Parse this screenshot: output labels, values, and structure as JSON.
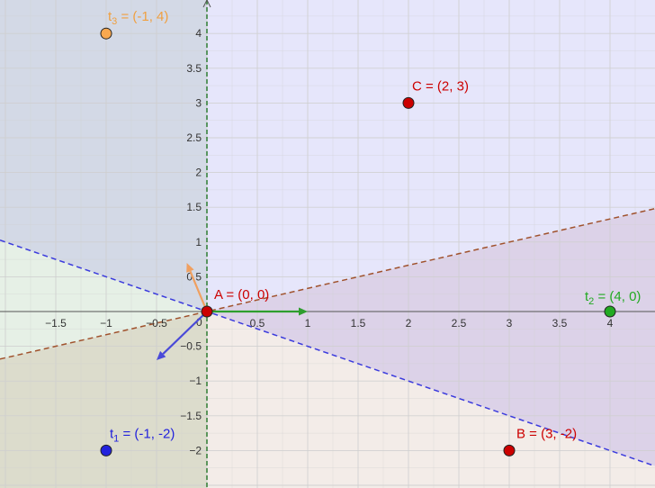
{
  "colors": {
    "region_left_upper": "#d3d9e6",
    "region_right_upper": "#e6e6fb",
    "region_left_mid": "#e6f0e6",
    "region_right_lower": "#f3ece8",
    "region_purple": "#dcd2e8",
    "region_olive": "#dcdccc",
    "grid": "#cfcfcf",
    "axis": "#555555",
    "line_brown": "#a0522d",
    "line_blue": "#3b3bdd",
    "vec_orange": "#f0a060",
    "vec_green": "#2e9e2e",
    "vec_blue": "#4a4ad8",
    "point_red": "#cc0000",
    "point_green": "#22aa22",
    "point_blue": "#2222dd",
    "point_orange": "#f8a850",
    "text_red": "#cc0000",
    "text_green": "#22aa22",
    "text_blue": "#2222dd",
    "text_orange": "#f0a040"
  },
  "axes": {
    "x_min": -2.0,
    "x_max": 4.45,
    "y_min": -2.5,
    "y_max": 4.5,
    "x_ticks": [
      {
        "v": -1.5,
        "label": "−1.5"
      },
      {
        "v": -1,
        "label": "−1"
      },
      {
        "v": -0.5,
        "label": "−0.5"
      },
      {
        "v": 0,
        "label": "0"
      },
      {
        "v": 0.5,
        "label": "0.5"
      },
      {
        "v": 1,
        "label": "1"
      },
      {
        "v": 1.5,
        "label": "1.5"
      },
      {
        "v": 2,
        "label": "2"
      },
      {
        "v": 2.5,
        "label": "2.5"
      },
      {
        "v": 3,
        "label": "3"
      },
      {
        "v": 3.5,
        "label": "3.5"
      },
      {
        "v": 4,
        "label": "4"
      }
    ],
    "y_ticks": [
      {
        "v": 4,
        "label": "4"
      },
      {
        "v": 3.5,
        "label": "3.5"
      },
      {
        "v": 3,
        "label": "3"
      },
      {
        "v": 2.5,
        "label": "2.5"
      },
      {
        "v": 2,
        "label": "2"
      },
      {
        "v": 1.5,
        "label": "1.5"
      },
      {
        "v": 1,
        "label": "1"
      },
      {
        "v": 0.5,
        "label": "0.5"
      },
      {
        "v": -0.5,
        "label": "−0.5"
      },
      {
        "v": -1,
        "label": "−1"
      },
      {
        "v": -1.5,
        "label": "−1.5"
      },
      {
        "v": -2,
        "label": "−2"
      }
    ],
    "grid_step": 0.25
  },
  "lines": [
    {
      "name": "line-blue",
      "slope": -0.5,
      "color_key": "line_blue"
    },
    {
      "name": "line-brown",
      "slope": 0.333,
      "color_key": "line_brown"
    }
  ],
  "vectors": [
    {
      "name": "vector-orange",
      "to": [
        -0.2,
        0.7
      ],
      "color_key": "vec_orange"
    },
    {
      "name": "vector-green",
      "to": [
        1.0,
        0.0
      ],
      "color_key": "vec_green"
    },
    {
      "name": "vector-blue",
      "to": [
        -0.5,
        -0.7
      ],
      "color_key": "vec_blue"
    }
  ],
  "points": [
    {
      "id": "A",
      "x": 0,
      "y": 0,
      "color_key": "point_red",
      "main": "A = (0, 0)",
      "sub": ""
    },
    {
      "id": "B",
      "x": 3,
      "y": -2,
      "color_key": "point_red",
      "main": "B = (3, -2)",
      "sub": ""
    },
    {
      "id": "C",
      "x": 2,
      "y": 3,
      "color_key": "point_red",
      "main": "C = (2, 3)",
      "sub": ""
    },
    {
      "id": "t1",
      "x": -1,
      "y": -2,
      "color_key": "point_blue",
      "main": "t",
      "sub": "1",
      "rest": " = (-1, -2)"
    },
    {
      "id": "t2",
      "x": 4,
      "y": 0,
      "color_key": "point_green",
      "main": "t",
      "sub": "2",
      "rest": " = (4, 0)"
    },
    {
      "id": "t3",
      "x": -1,
      "y": 4,
      "color_key": "point_orange",
      "main": "t",
      "sub": "3",
      "rest": " = (-1, 4)"
    }
  ]
}
